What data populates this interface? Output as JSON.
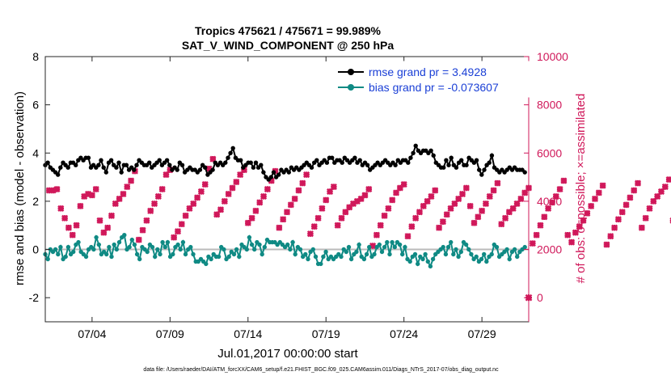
{
  "chart_data": {
    "type": "line",
    "title": "Tropics 475621 / 475671 = 99.989%",
    "subtitle": "SAT_V_WIND_COMPONENT @ 250 hPa",
    "xlabel": "Jul.01,2017 00:00:00 start",
    "ylabel_left": "rmse and bias (model - observation)",
    "ylabel_right": "# of obs: o=possible; ×=assimilated",
    "footer": "data file: /Users/raeder/DAI/ATM_forcXX/CAM6_setup/f.e21.FHIST_BGC.f09_025.CAM6assim.011/Diags_NTrS_2017-07/obs_diag_output.nc",
    "x_ticks": [
      {
        "day": 4,
        "label": "07/04"
      },
      {
        "day": 9,
        "label": "07/09"
      },
      {
        "day": 14,
        "label": "07/14"
      },
      {
        "day": 19,
        "label": "07/19"
      },
      {
        "day": 24,
        "label": "07/24"
      },
      {
        "day": 29,
        "label": "07/29"
      }
    ],
    "xlim": [
      1,
      32
    ],
    "ylim_left": [
      -3,
      8
    ],
    "yticks_left": [
      -2,
      0,
      2,
      4,
      6,
      8
    ],
    "ylim_right": [
      -1000,
      10000
    ],
    "yticks_right": [
      0,
      2000,
      4000,
      6000,
      8000,
      10000
    ],
    "colors": {
      "rmse": "#000000",
      "bias": "#0f8a84",
      "obs": "#d0185a",
      "zero": "#bbbbbb",
      "legend_text": "#1a3fd6"
    },
    "series": [
      {
        "name": "rmse grand pr = 3.4928",
        "color": "#000000",
        "values": [
          3.5,
          3.6,
          3.4,
          3.3,
          3.2,
          3.1,
          3.4,
          3.6,
          3.5,
          3.4,
          3.6,
          3.6,
          3.5,
          3.7,
          3.8,
          3.7,
          3.8,
          3.8,
          3.4,
          3.5,
          3.4,
          3.5,
          3.7,
          3.4,
          3.2,
          3.6,
          3.7,
          3.5,
          3.4,
          3.6,
          3.2,
          3.5,
          3.5,
          3.3,
          3.4,
          3.3,
          3.5,
          3.7,
          3.6,
          3.5,
          3.5,
          3.6,
          3.4,
          3.5,
          3.6,
          3.7,
          3.5,
          3.6,
          3.7,
          3.5,
          3.3,
          3.4,
          3.3,
          3.6,
          3.5,
          3.2,
          3.3,
          3.4,
          3.3,
          3.3,
          3.2,
          3.3,
          3.5,
          3.4,
          3.1,
          3.2,
          3.3,
          3.6,
          3.5,
          3.6,
          3.5,
          3.6,
          3.8,
          4.0,
          4.2,
          3.8,
          3.7,
          3.7,
          3.4,
          3.5,
          3.6,
          3.6,
          3.4,
          3.6,
          3.4,
          3.5,
          3.2,
          3.0,
          2.9,
          3.0,
          3.2,
          3.0,
          3.1,
          3.3,
          3.2,
          3.3,
          3.2,
          3.4,
          3.3,
          3.4,
          3.3,
          3.4,
          3.5,
          3.6,
          3.5,
          3.4,
          3.6,
          3.7,
          3.5,
          3.6,
          3.7,
          3.6,
          3.8,
          3.8,
          3.6,
          3.7,
          3.7,
          3.6,
          3.8,
          3.7,
          3.6,
          3.7,
          3.8,
          3.6,
          3.7,
          3.5,
          3.6,
          3.5,
          3.3,
          3.4,
          3.5,
          3.6,
          3.5,
          3.6,
          3.7,
          3.6,
          3.5,
          3.6,
          3.5,
          3.7,
          3.6,
          3.7,
          3.7,
          3.6,
          3.8,
          4.0,
          4.3,
          4.1,
          4.0,
          4.1,
          4.1,
          4.0,
          4.1,
          3.9,
          3.6,
          3.5,
          3.4,
          3.4,
          3.7,
          3.5,
          3.8,
          3.5,
          3.4,
          3.6,
          3.7,
          3.5,
          3.5,
          3.8,
          3.7,
          3.6,
          3.7,
          3.3,
          3.1,
          3.3,
          3.5,
          3.6,
          3.9,
          3.4,
          3.3,
          3.2,
          3.3,
          3.2,
          3.3,
          3.4,
          3.3,
          3.4,
          3.3,
          3.3,
          3.3,
          3.2
        ]
      },
      {
        "name": "bias grand pr = -0.073607",
        "color": "#0f8a84",
        "values": [
          -0.2,
          -0.4,
          0.0,
          -0.1,
          0.0,
          -0.2,
          0.1,
          -0.4,
          -0.3,
          0.1,
          -0.2,
          -0.1,
          0.2,
          0.3,
          -0.1,
          -0.2,
          -0.3,
          0.0,
          0.1,
          0.0,
          0.5,
          0.2,
          -0.2,
          -0.1,
          -0.2,
          0.1,
          -0.3,
          0.2,
          0.0,
          0.3,
          0.5,
          0.6,
          0.0,
          0.1,
          0.4,
          0.2,
          -0.2,
          -0.4,
          0.1,
          0.0,
          -0.1,
          0.2,
          0.1,
          -0.3,
          0.0,
          -0.2,
          0.3,
          0.1,
          0.3,
          -0.3,
          -0.2,
          0.1,
          0.2,
          0.0,
          0.3,
          -0.2,
          0.0,
          0.1,
          -0.2,
          -0.5,
          -0.5,
          -0.4,
          -0.5,
          -0.6,
          -0.3,
          -0.4,
          -0.2,
          -0.3,
          -0.3,
          0.1,
          0.0,
          -0.4,
          -0.3,
          -0.1,
          -0.2,
          0.0,
          -0.3,
          0.2,
          0.1,
          0.0,
          0.5,
          0.2,
          0.0,
          0.3,
          0.2,
          -0.2,
          0.1,
          0.4,
          0.3,
          0.3,
          0.3,
          0.2,
          0.3,
          0.2,
          0.1,
          0.2,
          0.0,
          0.3,
          -0.2,
          0.1,
          0.0,
          -0.3,
          -0.2,
          -0.4,
          -0.1,
          0.0,
          -0.3,
          -0.6,
          -0.6,
          -0.3,
          -0.1,
          -0.4,
          -0.3,
          -0.4,
          -0.3,
          -0.2,
          -0.3,
          0.0,
          -0.1,
          0.1,
          -0.4,
          -0.2,
          -0.1,
          0.2,
          -0.3,
          -0.4,
          -0.2,
          0.1,
          -0.3,
          -0.2,
          0.1,
          0.2,
          -0.1,
          0.1,
          0.3,
          -0.2,
          0.3,
          0.1,
          0.3,
          0.2,
          -0.2,
          0.1,
          -0.4,
          -0.5,
          -0.3,
          -0.2,
          -0.6,
          -0.3,
          -0.4,
          -0.2,
          -0.5,
          -0.7,
          -0.4,
          -0.2,
          -0.1,
          0.0,
          0.1,
          -0.2,
          0.1,
          0.3,
          -0.2,
          0.0,
          -0.3,
          -0.1,
          0.3,
          0.2,
          0.0,
          -0.2,
          -0.4,
          -0.3,
          -0.5,
          -0.4,
          -0.2,
          -0.5,
          -0.3,
          -0.2,
          0.2,
          0.1,
          -0.3,
          -0.2,
          -0.1,
          0.0,
          -0.4,
          -0.1,
          0.0,
          -0.3,
          -0.1,
          0.0,
          0.1
        ]
      }
    ],
    "obs_assimilated": {
      "name": "# of obs assimilated",
      "color": "#d0185a",
      "values": [
        4450,
        4450,
        4500,
        3700,
        3300,
        2900,
        2600,
        3000,
        3800,
        4200,
        4300,
        4250,
        4500,
        3200,
        2700,
        2900,
        3400,
        3900,
        4100,
        4300,
        4600,
        4850,
        5250,
        2400,
        2800,
        3200,
        3600,
        3900,
        4200,
        4500,
        5100,
        5300,
        2500,
        2750,
        3050,
        3400,
        3700,
        3900,
        4150,
        4400,
        4700,
        5350,
        5750,
        3450,
        3650,
        4000,
        4300,
        4550,
        4800,
        5100,
        5300,
        3100,
        3300,
        3600,
        3950,
        4200,
        4500,
        4850,
        5250,
        2900,
        3250,
        3550,
        3850,
        4100,
        4450,
        4750,
        5100,
        2650,
        2950,
        3300,
        3700,
        4050,
        4400,
        4600,
        3000,
        3300,
        3550,
        3750,
        3900,
        4000,
        4100,
        4250,
        4500,
        2150,
        2600,
        3000,
        3400,
        3700,
        4050,
        4350,
        4550,
        4700,
        2550,
        2950,
        3300,
        3550,
        3800,
        4000,
        4200,
        4450,
        2900,
        3150,
        3450,
        3700,
        3900,
        4100,
        4300,
        4550,
        3800,
        3100,
        3350,
        3600,
        3900,
        4200,
        4450,
        4750,
        3050,
        3300,
        3550,
        3700,
        3900,
        4100,
        4350,
        4550,
        2250,
        2600,
        3000,
        3350,
        3700,
        3950,
        4200,
        4500,
        4850,
        2600,
        2300,
        2700,
        2950,
        3200,
        3500,
        3800,
        4100,
        4350,
        4650,
        2200,
        2550,
        2900,
        3250,
        3550,
        3850,
        4150,
        4450,
        4750,
        2900,
        3300,
        3700,
        4000,
        4200,
        4400,
        4600,
        4900,
        3200,
        2400,
        2700,
        3000,
        3300,
        3550,
        3800,
        4100,
        4400,
        3000,
        2200,
        2500,
        2800,
        3100,
        3400,
        3650,
        3900,
        4250,
        4500,
        3050,
        3300,
        3550,
        3800,
        4050,
        4150,
        4250,
        4400,
        2700,
        3000,
        3200
      ]
    },
    "obs_possible_visible": {
      "day": 32,
      "value": 0
    }
  }
}
